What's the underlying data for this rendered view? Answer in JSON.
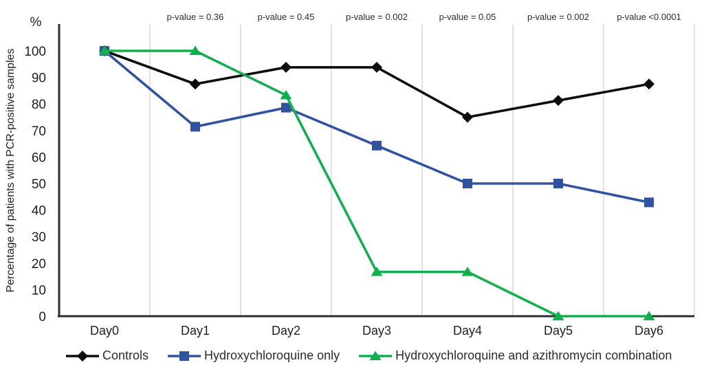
{
  "chart_data": {
    "type": "line",
    "title": "",
    "y_axis_unit": "%",
    "ylabel": "Percentage of patients with PCR-positive samples",
    "xlabel": "",
    "categories": [
      "Day0",
      "Day1",
      "Day2",
      "Day3",
      "Day4",
      "Day5",
      "Day6"
    ],
    "y_ticks": [
      0,
      10,
      20,
      30,
      40,
      50,
      60,
      70,
      80,
      90,
      100
    ],
    "ylim": [
      0,
      100
    ],
    "grid": "vertical-only",
    "legend_position": "bottom",
    "series": [
      {
        "name": "Controls",
        "marker": "diamond",
        "color": "#0d0d0d",
        "values": [
          100,
          87.5,
          93.8,
          93.8,
          75,
          81.3,
          87.5
        ]
      },
      {
        "name": "Hydroxychloroquine only",
        "marker": "square",
        "color": "#31539f",
        "values": [
          100,
          71.4,
          78.6,
          64.3,
          50,
          50,
          42.9
        ]
      },
      {
        "name": "Hydroxychloroquine and azithromycin combination",
        "marker": "triangle",
        "color": "#13ae4f",
        "values": [
          100,
          100,
          83.3,
          16.7,
          16.7,
          0,
          0
        ]
      }
    ],
    "annotations": {
      "p_values": [
        {
          "category": "Day1",
          "label": "p-value = 0.36"
        },
        {
          "category": "Day2",
          "label": "p-value = 0.45"
        },
        {
          "category": "Day3",
          "label": "p-value = 0.002"
        },
        {
          "category": "Day4",
          "label": "p-value = 0.05"
        },
        {
          "category": "Day5",
          "label": "p-value = 0.002"
        },
        {
          "category": "Day6",
          "label": "p-value <0.0001"
        }
      ]
    }
  },
  "colors": {
    "background": "#ffffff",
    "axis": "#2d2d2d",
    "gridline": "#d9d9d9",
    "tick_text": "#1e1e1e",
    "annotation_text": "#2a2a2a",
    "legend_text": "#2b2b2b"
  }
}
